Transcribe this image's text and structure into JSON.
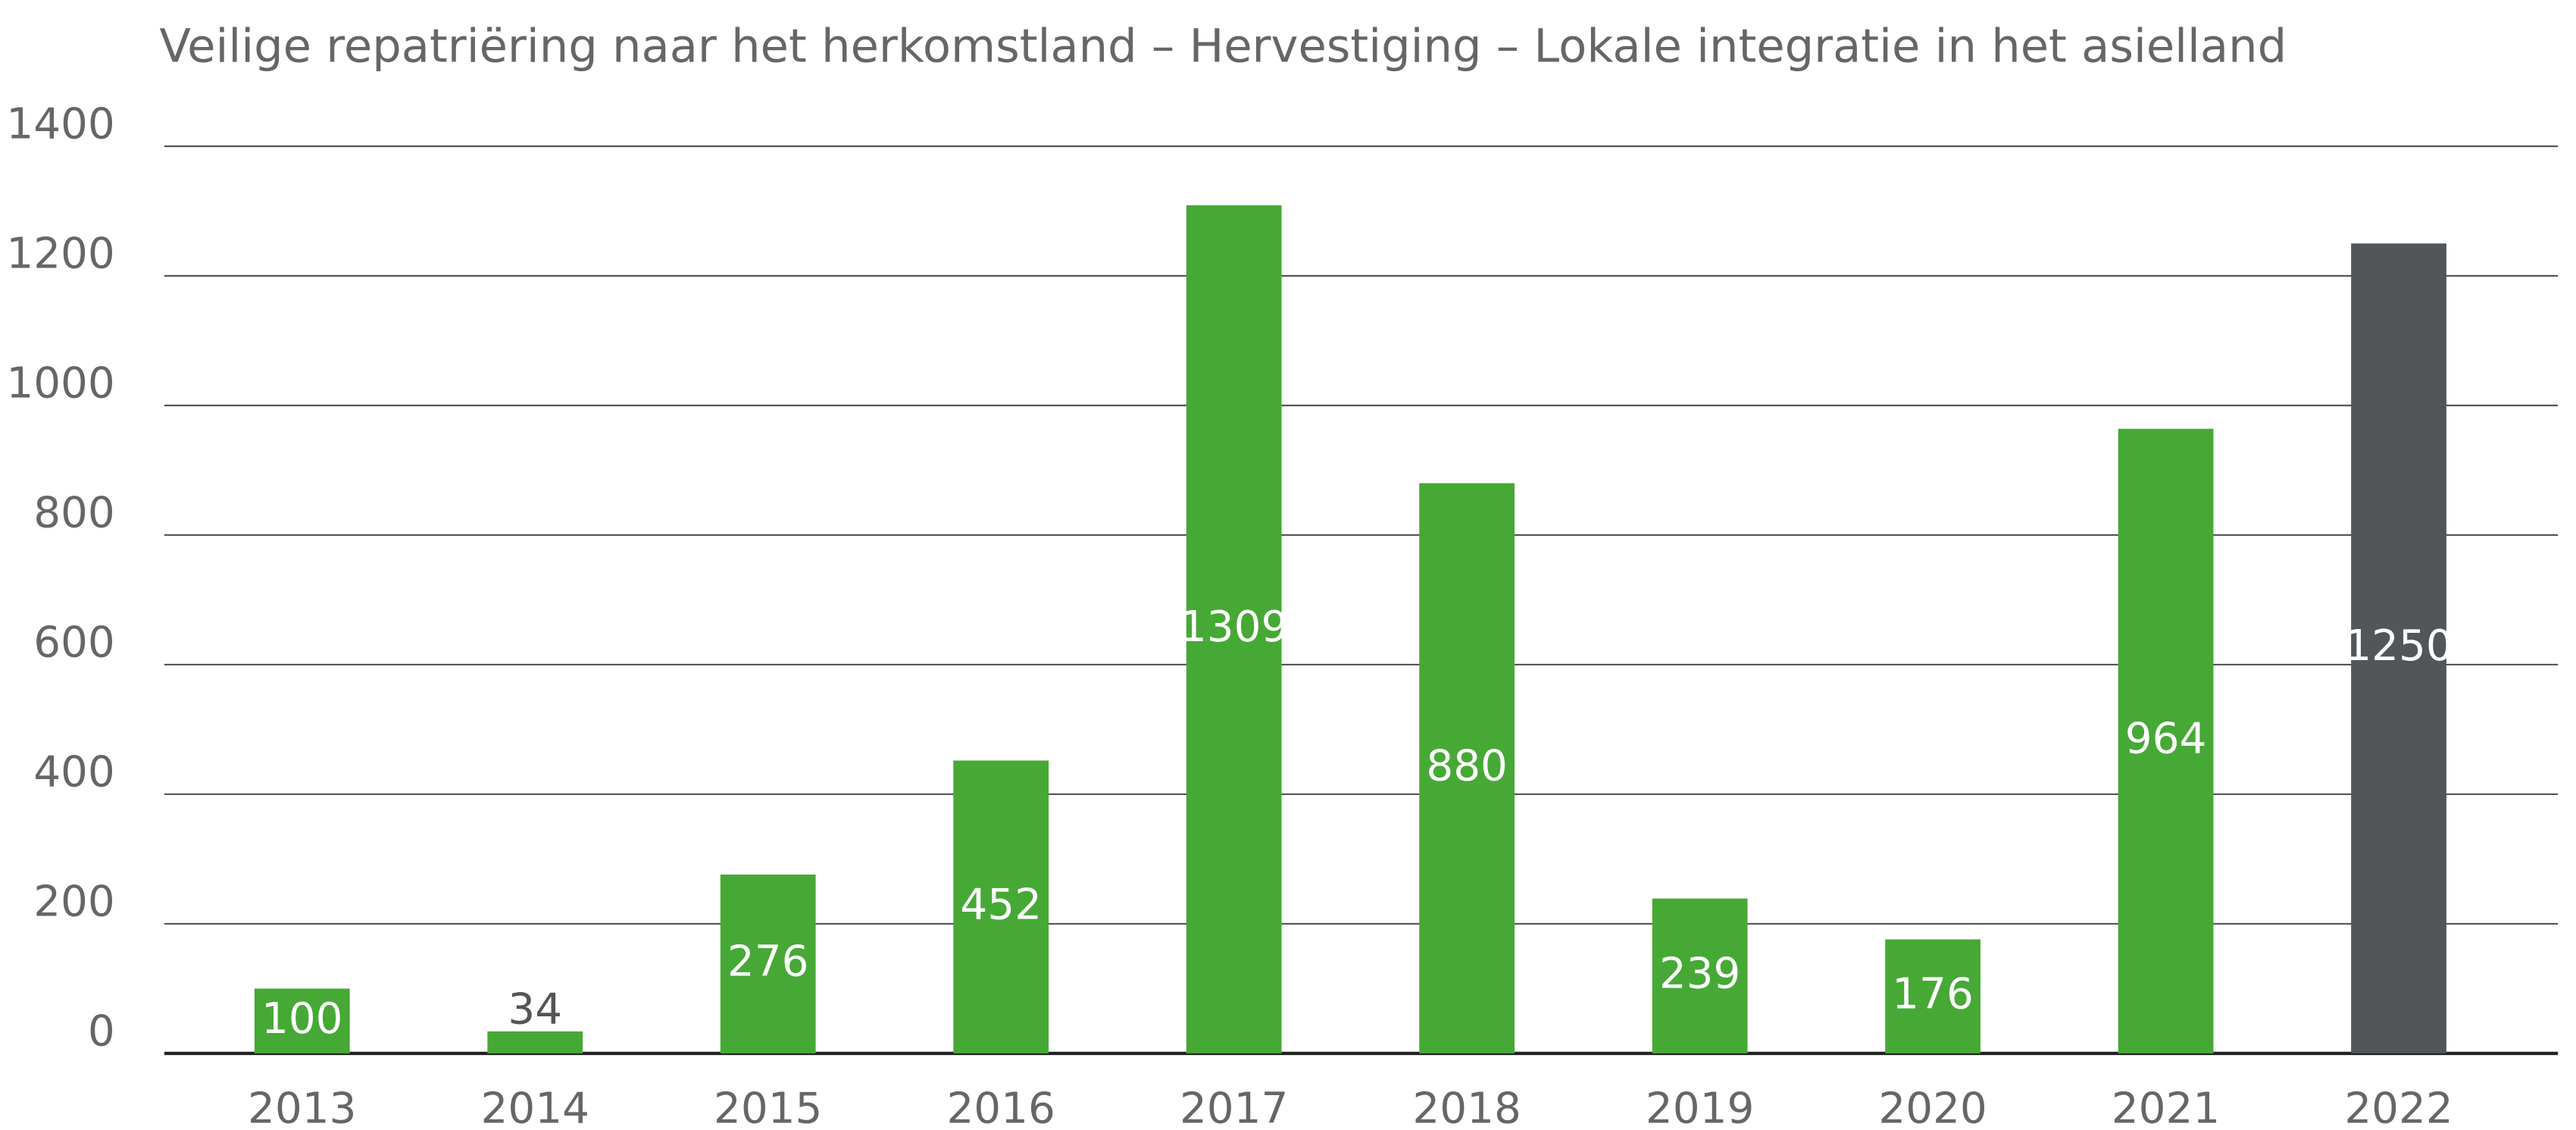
{
  "chart_data": {
    "type": "bar",
    "title": "Veilige repatriëring naar het herkomstland – Hervestiging – Lokale integratie in het asielland",
    "categories": [
      "2013",
      "2014",
      "2015",
      "2016",
      "2017",
      "2018",
      "2019",
      "2020",
      "2021",
      "2022"
    ],
    "values": [
      100,
      34,
      276,
      452,
      1309,
      880,
      239,
      176,
      964,
      1250
    ],
    "colors": [
      "#46a935",
      "#46a935",
      "#46a935",
      "#46a935",
      "#46a935",
      "#46a935",
      "#46a935",
      "#46a935",
      "#46a935",
      "#535659"
    ],
    "ylim": [
      0,
      1400
    ],
    "yticks": [
      0,
      200,
      400,
      600,
      800,
      1000,
      1200,
      1400
    ],
    "grid": true
  }
}
